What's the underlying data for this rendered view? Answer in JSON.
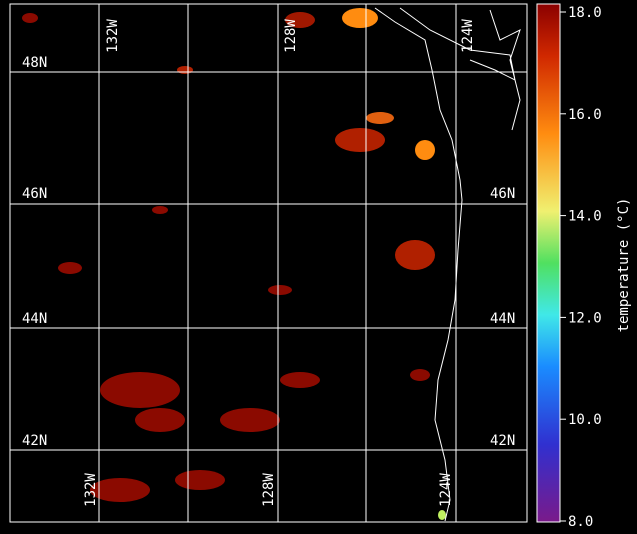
{
  "map": {
    "top_labels": [
      "132W",
      "128W",
      "124W"
    ],
    "bottom_labels": [
      "132W",
      "128W",
      "124W"
    ],
    "left_labels": [
      "48N",
      "46N",
      "44N",
      "42N"
    ],
    "right_labels": [
      "46N",
      "44N",
      "42N"
    ]
  },
  "colorbar": {
    "label": "temperature (°C)",
    "lim": [
      8,
      18
    ],
    "ticks": [
      {
        "value": 8,
        "label": "8.0"
      },
      {
        "value": 10,
        "label": "10.0"
      },
      {
        "value": 12,
        "label": "12.0"
      },
      {
        "value": 14,
        "label": "14.0"
      },
      {
        "value": 16,
        "label": "16.0"
      },
      {
        "value": 18,
        "label": "18.0"
      }
    ]
  }
}
